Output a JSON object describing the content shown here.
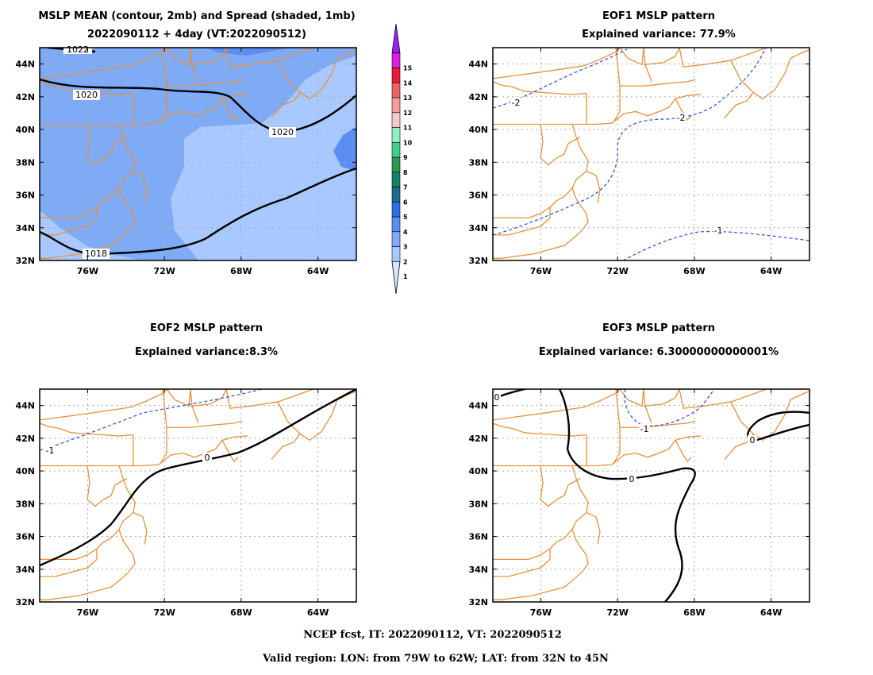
{
  "panels": [
    {
      "id": "mslp-mean-spread",
      "title_line1": "MSLP MEAN (contour, 2mb) and Spread (shaded, 1mb)",
      "title_line2": "2022090112 + 4day (VT:2022090512)",
      "contour_labels": [
        "1022",
        "1020",
        "1020",
        "1018"
      ]
    },
    {
      "id": "eof1",
      "title_line1": "EOF1 MSLP pattern",
      "title_line2": "Explained variance: 77.9%",
      "contour_labels": [
        "-2",
        "-2",
        "-1"
      ]
    },
    {
      "id": "eof2",
      "title_line1": "EOF2 MSLP pattern",
      "title_line2": "Explained variance:8.3%",
      "contour_labels": [
        "-1",
        "0"
      ]
    },
    {
      "id": "eof3",
      "title_line1": "EOF3 MSLP pattern",
      "title_line2": "Explained variance: 6.30000000000001%",
      "contour_labels": [
        "0",
        "-1",
        "0",
        "0"
      ]
    }
  ],
  "axes": {
    "lat_ticks": [
      "44N",
      "42N",
      "40N",
      "38N",
      "36N",
      "34N",
      "32N"
    ],
    "lon_ticks": [
      "76W",
      "72W",
      "68W",
      "64W"
    ]
  },
  "colorbar": {
    "levels": [
      "1",
      "2",
      "3",
      "4",
      "5",
      "6",
      "7",
      "8",
      "9",
      "10",
      "11",
      "12",
      "13",
      "14",
      "15"
    ],
    "colors": [
      "#d6e6ff",
      "#a8c8ff",
      "#7eaaf6",
      "#5a8ef0",
      "#2f6de6",
      "#1a6e8c",
      "#14806a",
      "#2c9a4e",
      "#3fcf8e",
      "#8ff0c4",
      "#f8c8c8",
      "#f49c9c",
      "#ef6060",
      "#e61c3a",
      "#e020e0",
      "#a020f0"
    ]
  },
  "footer": {
    "line1": "NCEP fcst, IT: 2022090112, VT: 2022090512",
    "line2": "Valid region: LON: from 79W to 62W; LAT: from 32N to 45N"
  },
  "style_colors": {
    "coast": "#e8903c",
    "grid": "#aaaaaa",
    "eof_neg": "#2a4cdb",
    "zero_line": "#000000",
    "shade_level_2": "#a8c8ff",
    "shade_level_3": "#7eaaf6",
    "shade_level_4": "#5a8ef0",
    "shade_level_5": "#2f6de6"
  }
}
